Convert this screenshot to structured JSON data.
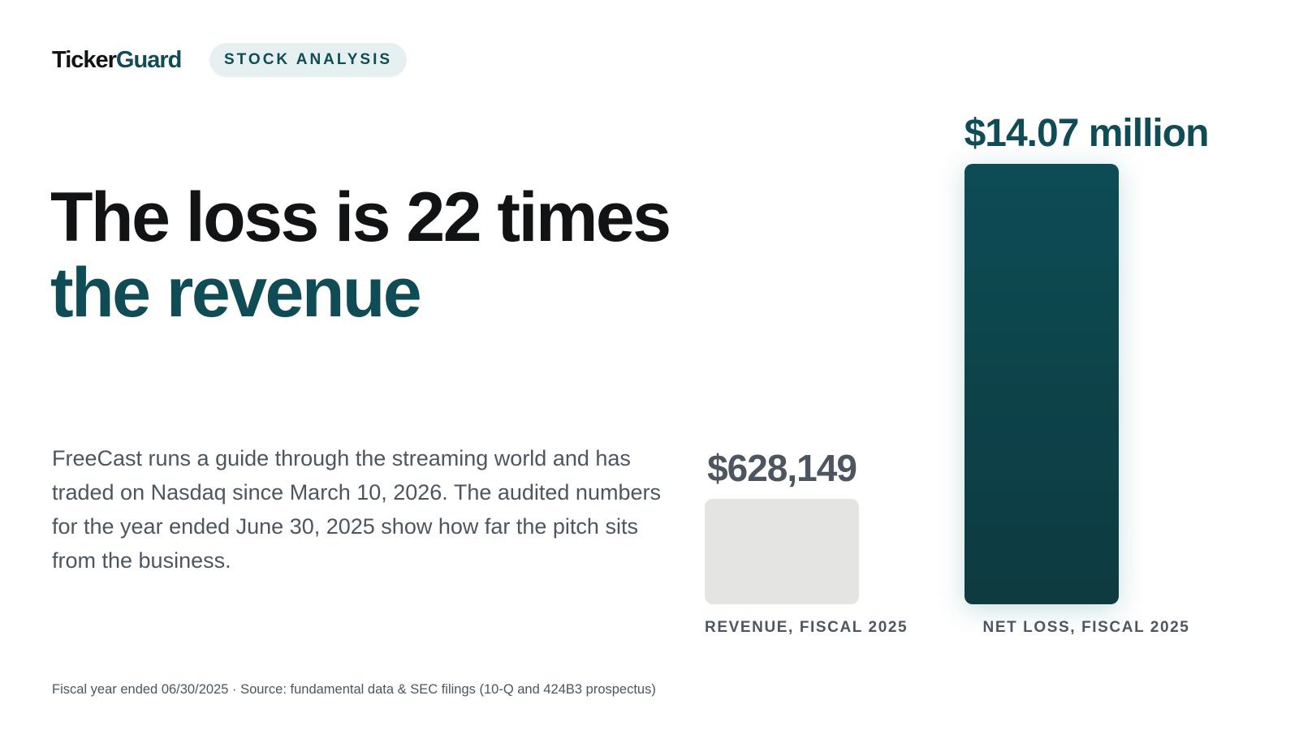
{
  "brand": {
    "name_part1": "Ticker",
    "name_part2": "Guard"
  },
  "tag": "STOCK ANALYSIS",
  "headline": {
    "line1": "The loss is 22 times",
    "line2": "the revenue"
  },
  "body": "FreeCast runs a guide through the streaming world and has traded on Nasdaq since March 10, 2026. The audited numbers for the year ended June 30, 2025 show how far the pitch sits from the business.",
  "footnote": "Fiscal year ended 06/30/2025 · Source: fundamental data & SEC filings (10-Q and 424B3 prospectus)",
  "colors": {
    "accent": "#0f4c55",
    "accent_dark": "#0b3a40",
    "revenue_bar": "#e4e4e2",
    "text_dark": "#111315",
    "text_muted": "#4d5660",
    "tag_bg": "#e6f0f0"
  },
  "chart_data": {
    "type": "bar",
    "categories": [
      "REVENUE, FISCAL 2025",
      "NET LOSS, FISCAL 2025"
    ],
    "values": [
      628149,
      14070000
    ],
    "value_labels": [
      "$628,149",
      "$14.07 million"
    ],
    "title": "",
    "xlabel": "",
    "ylabel": "",
    "ylim": [
      0,
      14070000
    ],
    "grid": false,
    "legend": "none"
  }
}
